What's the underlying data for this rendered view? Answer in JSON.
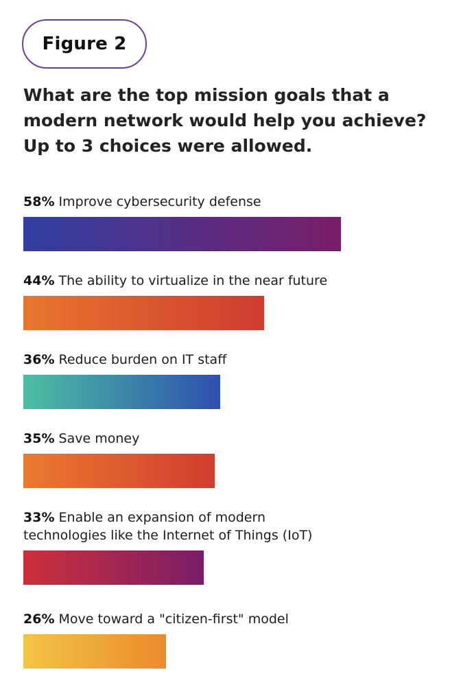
{
  "figure_label": "Figure 2",
  "chart_data": {
    "type": "bar",
    "orientation": "horizontal",
    "title": "What are the top mission goals that a modern network would help you achieve? Up to 3 choices were allowed.",
    "unit": "%",
    "xlim": [
      0,
      70
    ],
    "grid": false,
    "bars": [
      {
        "value": 58,
        "pct_label": "58%",
        "label_lines": [
          "Improve cybersecurity defense"
        ],
        "colors": [
          "#2f3fa2",
          "#7a1d68"
        ]
      },
      {
        "value": 44,
        "pct_label": "44%",
        "label_lines": [
          "The ability to virtualize in the near future"
        ],
        "colors": [
          "#e8772e",
          "#d03a30"
        ]
      },
      {
        "value": 36,
        "pct_label": "36%",
        "label_lines": [
          "Reduce burden on IT staff"
        ],
        "colors": [
          "#4dbfa3",
          "#2e4fae"
        ]
      },
      {
        "value": 35,
        "pct_label": "35%",
        "label_lines": [
          "Save money"
        ],
        "colors": [
          "#ea7a2e",
          "#d23c2f"
        ]
      },
      {
        "value": 33,
        "pct_label": "33%",
        "label_lines": [
          "Enable an expansion of modern",
          "technologies like the Internet of Things (IoT)"
        ],
        "colors": [
          "#cd2f3a",
          "#7a1d68"
        ]
      },
      {
        "value": 26,
        "pct_label": "26%",
        "label_lines": [
          "Move toward a \"citizen-first\" model"
        ],
        "colors": [
          "#f2c544",
          "#eb8a2e"
        ]
      }
    ]
  }
}
